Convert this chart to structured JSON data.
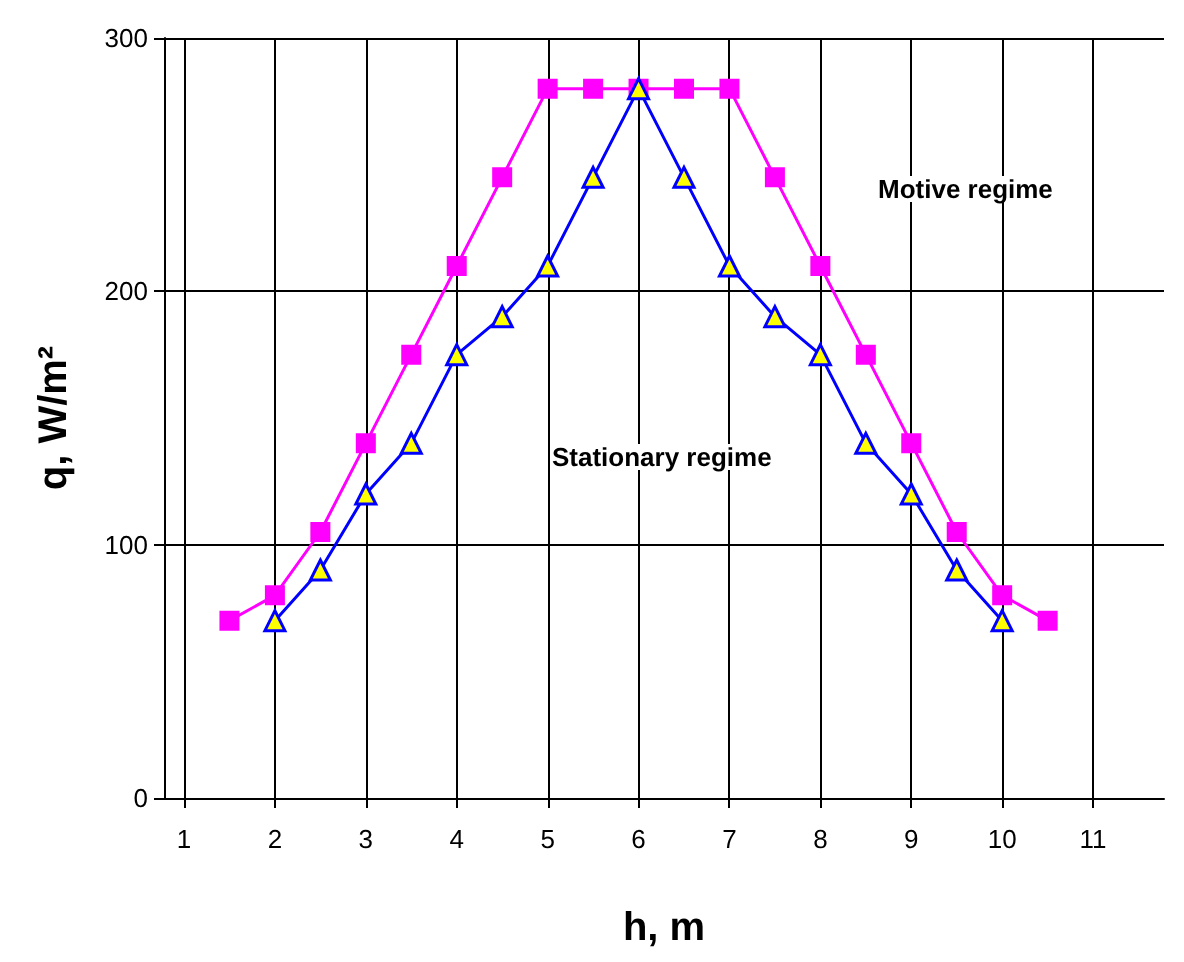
{
  "chart_data": {
    "type": "line",
    "xlabel": "h, m",
    "ylabel": "q, W/m²",
    "xlim": [
      0.78,
      11.78
    ],
    "xticks": [
      1,
      2,
      3,
      4,
      5,
      6,
      7,
      8,
      9,
      10,
      11
    ],
    "ylim": [
      0,
      300
    ],
    "yticks": [
      0,
      100,
      200,
      300
    ],
    "grid": true,
    "line_style": "solid",
    "series": [
      {
        "color": "#ff00ff",
        "marker": "square",
        "x": [
          1.5,
          2,
          2.5,
          3,
          3.5,
          4,
          4.5,
          5,
          5.5,
          6,
          6.5,
          7,
          7.5,
          8,
          8.5,
          9,
          9.5,
          10,
          10.5
        ],
        "values": [
          70,
          80,
          105,
          140,
          175,
          210,
          245,
          280,
          280,
          280,
          280,
          280,
          245,
          210,
          175,
          140,
          105,
          80,
          70
        ]
      },
      {
        "color": "#0000ff",
        "marker": "triangle",
        "x": [
          2,
          2.5,
          3,
          3.5,
          4,
          4.5,
          5,
          5.5,
          6,
          6.5,
          7,
          7.5,
          8,
          8.5,
          9,
          9.5,
          10
        ],
        "values": [
          70,
          90,
          120,
          140,
          175,
          190,
          210,
          245,
          280,
          245,
          210,
          190,
          175,
          140,
          120,
          90,
          70
        ]
      }
    ],
    "annotations": [
      "Motive regime",
      "Stationary regime"
    ]
  }
}
